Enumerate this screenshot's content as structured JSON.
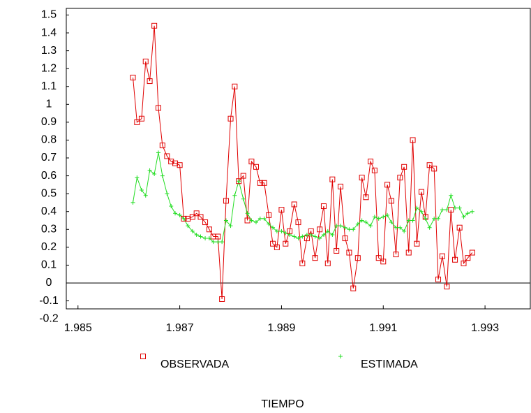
{
  "chart_data": {
    "type": "line",
    "x_label": "TIEMPO",
    "xlim": [
      1.98477,
      1.99389
    ],
    "xticks": [
      1.985,
      1.987,
      1.989,
      1.991,
      1.993
    ],
    "ylim": [
      -0.2,
      1.55
    ],
    "yticks": [
      -0.2,
      -0.1,
      0,
      0.1,
      0.2,
      0.3,
      0.4,
      0.5,
      0.6,
      0.7,
      0.8,
      0.9,
      1,
      1.1,
      1.2,
      1.3,
      1.4,
      1.5
    ],
    "x": [
      1.98608,
      1.98616,
      1.98625,
      1.98633,
      1.98641,
      1.9865,
      1.98658,
      1.98666,
      1.98675,
      1.98683,
      1.98691,
      1.987,
      1.98708,
      1.98716,
      1.98725,
      1.98733,
      1.98741,
      1.9875,
      1.98758,
      1.98766,
      1.98775,
      1.98783,
      1.98791,
      1.988,
      1.98808,
      1.98816,
      1.98825,
      1.98833,
      1.98841,
      1.9885,
      1.98858,
      1.98866,
      1.98875,
      1.98883,
      1.98891,
      1.989,
      1.98908,
      1.98916,
      1.98925,
      1.98933,
      1.98941,
      1.9895,
      1.98958,
      1.98966,
      1.98975,
      1.98983,
      1.98991,
      1.99,
      1.99008,
      1.99016,
      1.99025,
      1.99033,
      1.99041,
      1.9905,
      1.99058,
      1.99066,
      1.99075,
      1.99083,
      1.99091,
      1.991,
      1.99108,
      1.99116,
      1.99125,
      1.99133,
      1.99141,
      1.9915,
      1.99158,
      1.99166,
      1.99175,
      1.99183,
      1.99191,
      1.992,
      1.99208,
      1.99216,
      1.99225,
      1.99233,
      1.99241,
      1.9925,
      1.99258,
      1.99266,
      1.99275
    ],
    "series": [
      {
        "name": "OBSERVADA",
        "color": "#e00000",
        "marker": "square",
        "values": [
          1.15,
          0.9,
          0.92,
          1.24,
          1.13,
          1.44,
          0.98,
          0.77,
          0.71,
          0.68,
          0.67,
          0.66,
          0.36,
          0.36,
          0.37,
          0.39,
          0.37,
          0.34,
          0.3,
          0.26,
          0.26,
          -0.09,
          0.46,
          0.92,
          1.1,
          0.57,
          0.6,
          0.35,
          0.68,
          0.65,
          0.56,
          0.56,
          0.38,
          0.22,
          0.2,
          0.41,
          0.22,
          0.29,
          0.44,
          0.34,
          0.11,
          0.25,
          0.29,
          0.14,
          0.3,
          0.43,
          0.11,
          0.58,
          0.18,
          0.54,
          0.25,
          0.17,
          -0.03,
          0.14,
          0.59,
          0.48,
          0.68,
          0.63,
          0.14,
          0.12,
          0.55,
          0.46,
          0.16,
          0.59,
          0.65,
          0.17,
          0.8,
          0.22,
          0.51,
          0.37,
          0.66,
          0.64,
          0.02,
          0.15,
          -0.02,
          0.41,
          0.13,
          0.31,
          0.11,
          0.14,
          0.17
        ]
      },
      {
        "name": "ESTIMADA",
        "color": "#22dd22",
        "marker": "plus",
        "values": [
          0.45,
          0.59,
          0.52,
          0.49,
          0.63,
          0.61,
          0.73,
          0.6,
          0.5,
          0.43,
          0.39,
          0.38,
          0.36,
          0.32,
          0.29,
          0.27,
          0.26,
          0.25,
          0.25,
          0.23,
          0.23,
          0.23,
          0.35,
          0.32,
          0.49,
          0.57,
          0.47,
          0.39,
          0.35,
          0.34,
          0.36,
          0.36,
          0.33,
          0.31,
          0.29,
          0.29,
          0.28,
          0.27,
          0.26,
          0.25,
          0.26,
          0.27,
          0.27,
          0.26,
          0.25,
          0.27,
          0.29,
          0.27,
          0.32,
          0.32,
          0.31,
          0.3,
          0.3,
          0.33,
          0.35,
          0.34,
          0.32,
          0.37,
          0.36,
          0.37,
          0.38,
          0.34,
          0.31,
          0.31,
          0.29,
          0.35,
          0.35,
          0.42,
          0.4,
          0.36,
          0.31,
          0.36,
          0.36,
          0.41,
          0.41,
          0.49,
          0.42,
          0.42,
          0.37,
          0.39,
          0.4
        ]
      }
    ]
  }
}
